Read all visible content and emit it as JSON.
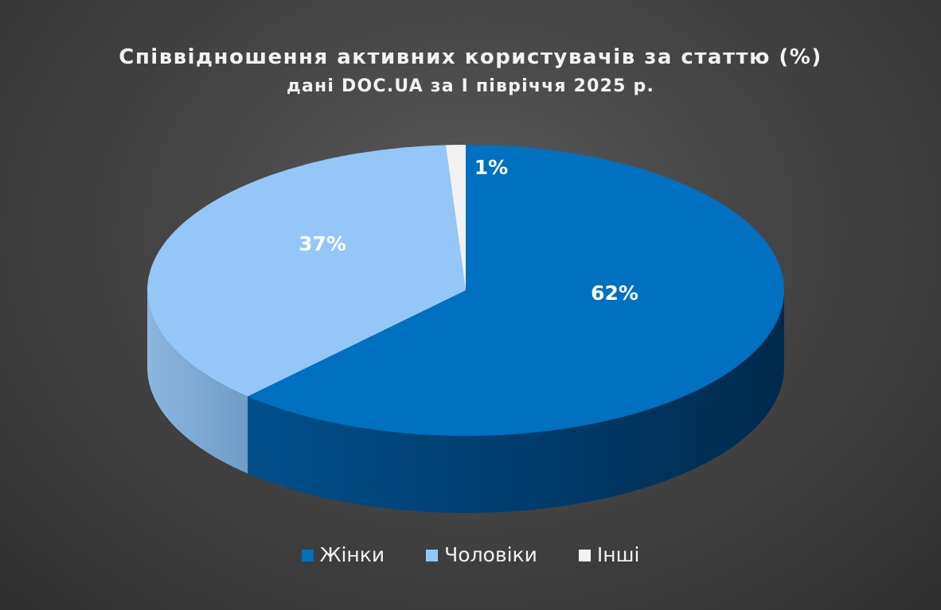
{
  "chart_data": {
    "type": "pie",
    "title": "Співвідношення активних користувачів за статтю (%)",
    "subtitle": "дані DOC.UA за I півріччя 2025 р.",
    "categories": [
      "Жінки",
      "Чоловіки",
      "Інші"
    ],
    "values": [
      62,
      37,
      1
    ],
    "labels": [
      "62%",
      "37%",
      "1%"
    ],
    "colors": [
      "#0070c0",
      "#94c7f8",
      "#f2f2f2"
    ],
    "legend_position": "bottom",
    "style": "3d"
  }
}
